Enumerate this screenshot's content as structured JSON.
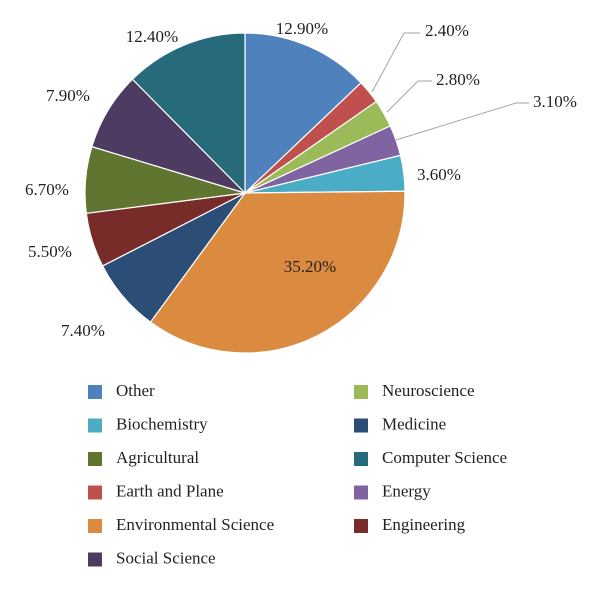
{
  "chart_data": {
    "type": "pie",
    "title": "",
    "slices": [
      {
        "label": "Other",
        "value": 12.9,
        "display": "12.90%",
        "color": "#4f81bd"
      },
      {
        "label": "Earth and Plane",
        "value": 2.4,
        "display": "2.40%",
        "color": "#c0504d"
      },
      {
        "label": "Neuroscience",
        "value": 2.8,
        "display": "2.80%",
        "color": "#9bbb59"
      },
      {
        "label": "Energy",
        "value": 3.1,
        "display": "3.10%",
        "color": "#8064a2"
      },
      {
        "label": "Biochemistry",
        "value": 3.6,
        "display": "3.60%",
        "color": "#4bacc6"
      },
      {
        "label": "Environmental Science",
        "value": 35.2,
        "display": "35.20%",
        "color": "#db8b3f"
      },
      {
        "label": "Medicine",
        "value": 7.4,
        "display": "7.40%",
        "color": "#2c4d75"
      },
      {
        "label": "Engineering",
        "value": 5.5,
        "display": "5.50%",
        "color": "#772c2a"
      },
      {
        "label": "Agricultural",
        "value": 6.7,
        "display": "6.70%",
        "color": "#5f7530"
      },
      {
        "label": "Social Science",
        "value": 7.9,
        "display": "7.90%",
        "color": "#4d3b62"
      },
      {
        "label": "Computer Science",
        "value": 12.4,
        "display": "12.40%",
        "color": "#276a7c"
      }
    ],
    "legend": {
      "placement": "bottom",
      "columns": [
        [
          "Other",
          "Biochemistry",
          "Agricultural",
          "Earth and Plane",
          "Environmental Science",
          "Social Science"
        ],
        [
          "Neuroscience",
          "Medicine",
          "Computer Science",
          "Energy",
          "Engineering"
        ]
      ]
    }
  }
}
